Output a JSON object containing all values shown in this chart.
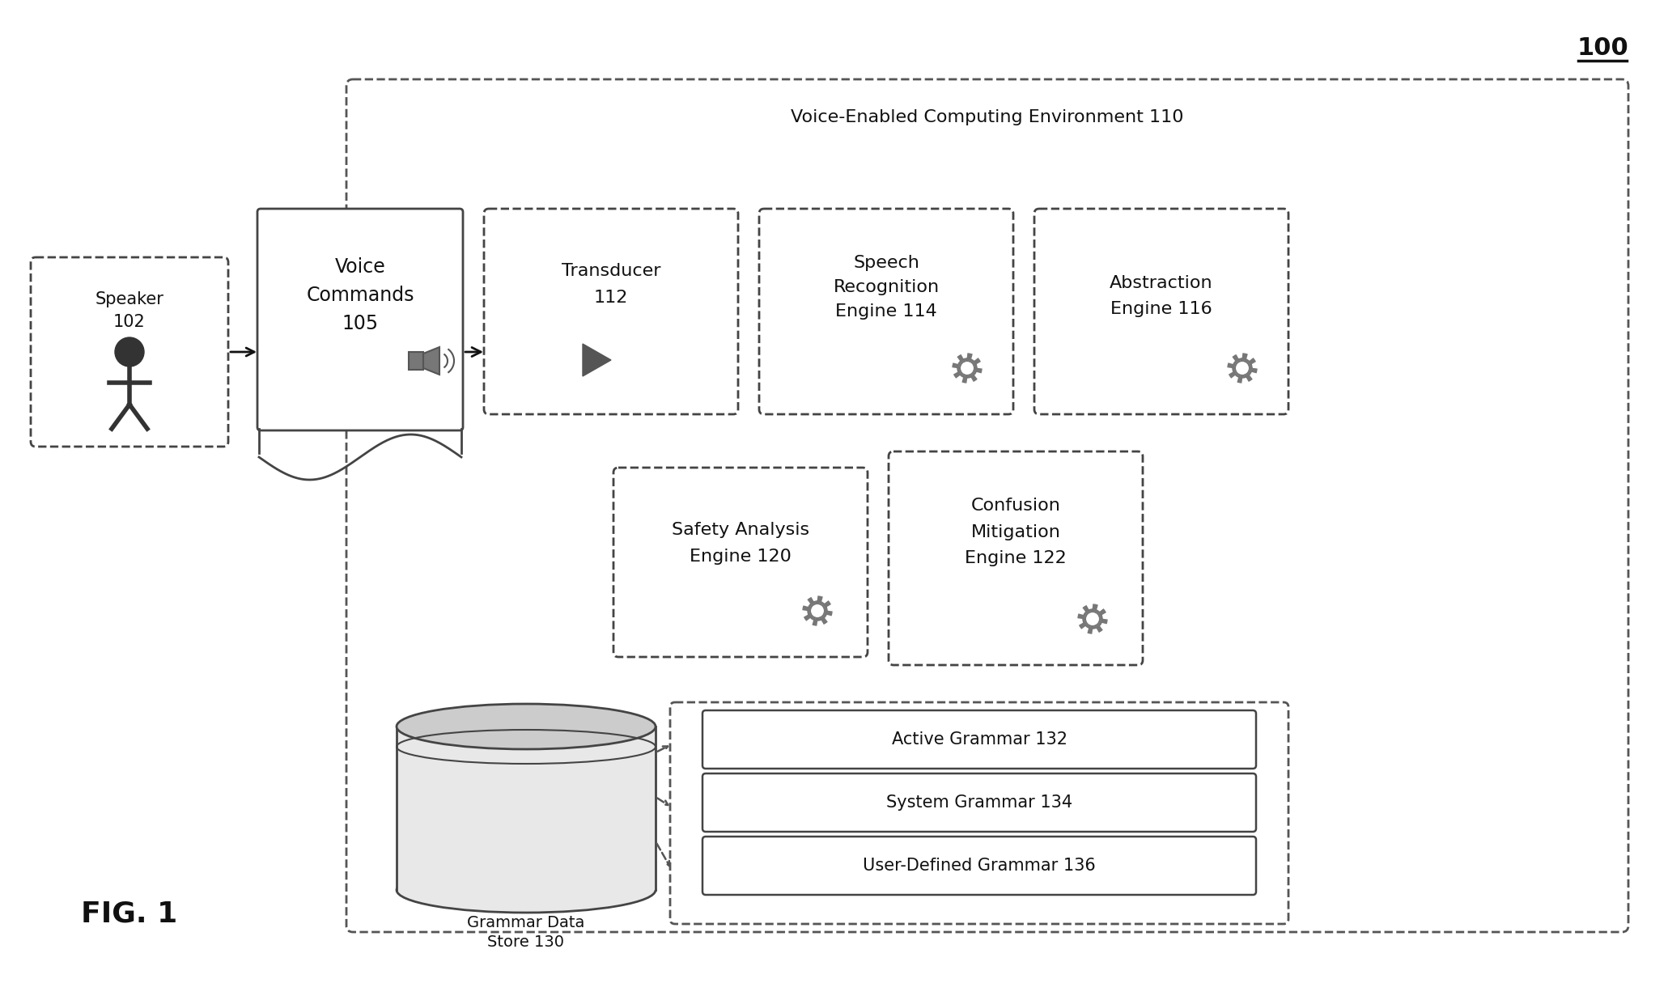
{
  "bg_color": "#ffffff",
  "fig_label": "100",
  "fig_name": "FIG. 1",
  "outer_env_label": "Voice-Enabled Computing Environment 110",
  "font_color": "#111111",
  "box_edge_color": "#444444",
  "dashed_color": "#555555",
  "line_color": "#111111"
}
